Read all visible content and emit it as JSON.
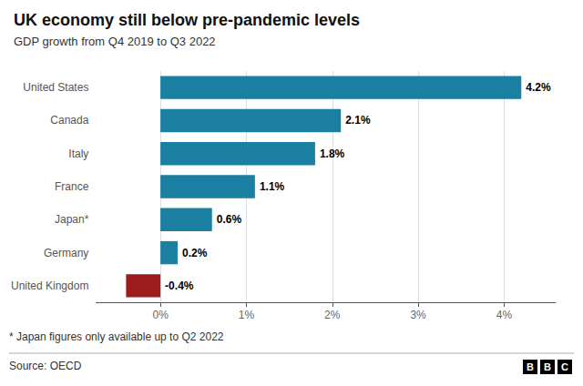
{
  "chart_data": {
    "type": "bar",
    "orientation": "horizontal",
    "title": "UK economy still below pre-pandemic levels",
    "subtitle": "GDP growth from Q4 2019 to Q3 2022",
    "categories": [
      "United States",
      "Canada",
      "Italy",
      "France",
      "Japan*",
      "Germany",
      "United Kingdom"
    ],
    "values": [
      4.2,
      2.1,
      1.8,
      1.1,
      0.6,
      0.2,
      -0.4
    ],
    "value_labels": [
      "4.2%",
      "2.1%",
      "1.8%",
      "1.1%",
      "0.6%",
      "0.2%",
      "-0.4%"
    ],
    "colors": [
      "#1a7fa0",
      "#1a7fa0",
      "#1a7fa0",
      "#1a7fa0",
      "#1a7fa0",
      "#1a7fa0",
      "#9b1c1c"
    ],
    "xlim": [
      -0.75,
      4.6
    ],
    "xticks": [
      {
        "value": 0,
        "label": "0%"
      },
      {
        "value": 1,
        "label": "1%"
      },
      {
        "value": 2,
        "label": "2%"
      },
      {
        "value": 3,
        "label": "3%"
      },
      {
        "value": 4,
        "label": "4%"
      }
    ],
    "grid": true,
    "data_labels": true,
    "footnote": "* Japan figures only available up to Q2 2022",
    "source": "Source: OECD",
    "logo": [
      "B",
      "B",
      "C"
    ]
  }
}
